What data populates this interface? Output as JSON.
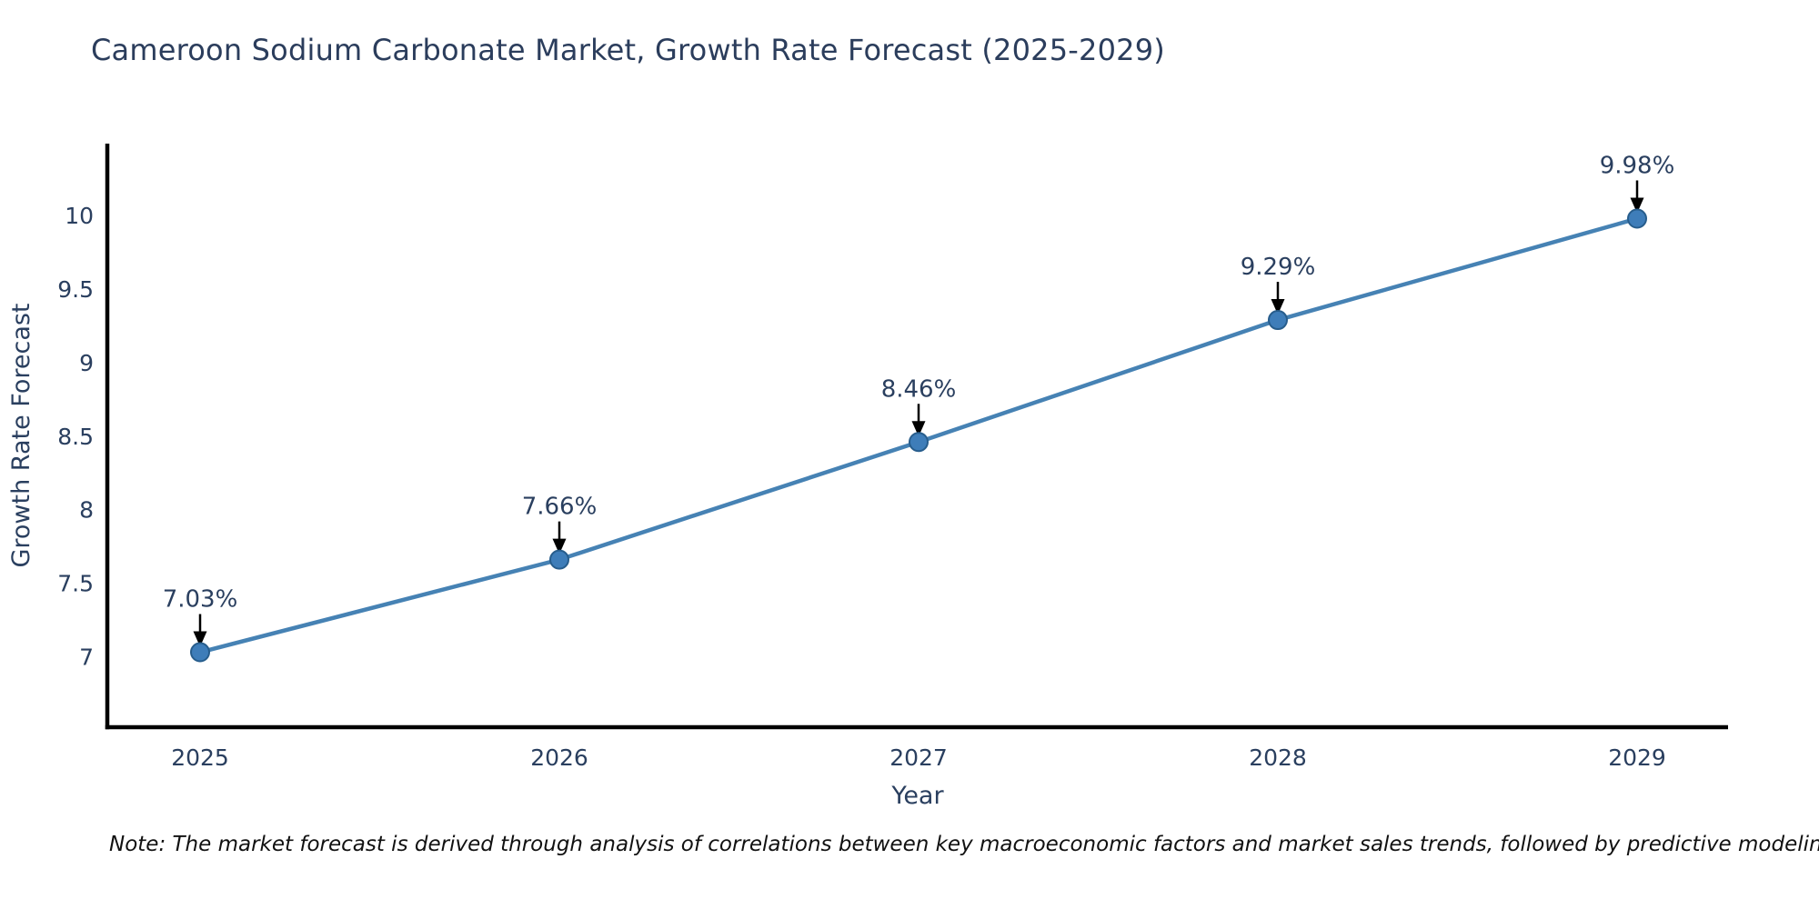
{
  "chart_data": {
    "type": "line",
    "title": "Cameroon Sodium Carbonate Market, Growth Rate Forecast (2025-2029)",
    "xlabel": "Year",
    "ylabel": "Growth Rate Forecast",
    "categories": [
      "2025",
      "2026",
      "2027",
      "2028",
      "2029"
    ],
    "series": [
      {
        "name": "Growth Rate Forecast",
        "values": [
          7.03,
          7.66,
          8.46,
          9.29,
          9.98
        ],
        "point_labels": [
          "7.03%",
          "7.66%",
          "8.46%",
          "9.29%",
          "9.98%"
        ]
      }
    ],
    "yticks": [
      {
        "value": 7,
        "label": "7"
      },
      {
        "value": 7.5,
        "label": "7.5"
      },
      {
        "value": 8,
        "label": "8"
      },
      {
        "value": 8.5,
        "label": "8.5"
      },
      {
        "value": 9,
        "label": "9"
      },
      {
        "value": 9.5,
        "label": "9.5"
      },
      {
        "value": 10,
        "label": "10"
      }
    ],
    "ylim": [
      6.52,
      10.49
    ],
    "grid": false,
    "legend_position": "none",
    "annotation_style": "value label above point with black arrow pointing down to marker",
    "colors": {
      "line": "#4682b4",
      "marker_fill": "#3e7db9",
      "marker_edge": "#275d8c",
      "axis": "#000000",
      "text": "#2a3f5f",
      "annotation_arrow": "#000000"
    }
  },
  "note": "Note: The market forecast is derived through analysis of correlations between key macroeconomic factors and market sales trends, followed by predictive modeling to project future sales"
}
